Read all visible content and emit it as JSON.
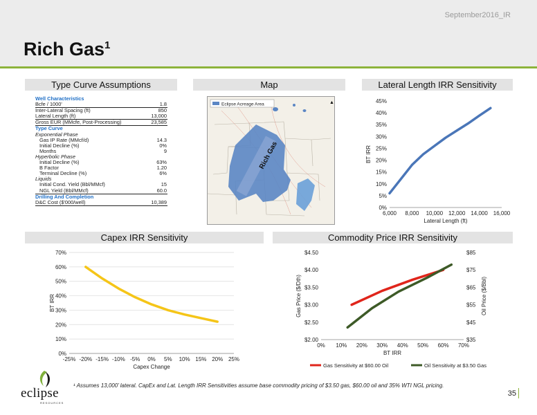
{
  "header": {
    "doc_id": "September2016_IR",
    "title": "Rich Gas",
    "title_sup": "1"
  },
  "sections": {
    "type_curve": "Type Curve Assumptions",
    "map": "Map",
    "lateral": "Lateral Length IRR Sensitivity",
    "capex": "Capex IRR Sensitivity",
    "commodity": "Commodity Price IRR Sensitivity"
  },
  "assumptions": [
    {
      "label": "Well Characteristics",
      "value": "",
      "style": "head"
    },
    {
      "label": "Bcfe / 1000'",
      "value": "1.8",
      "style": "ul"
    },
    {
      "label": "Inter-Lateral Spacing (ft)",
      "value": "850",
      "style": ""
    },
    {
      "label": "Lateral Length (ft)",
      "value": "13,000",
      "style": "ul"
    },
    {
      "label": "Gross EUR (MMcfe, Post-Processing)",
      "value": "23,585",
      "style": "ul"
    },
    {
      "label": "Type Curve",
      "value": "",
      "style": "head"
    },
    {
      "label": "Exponential Phase",
      "value": "",
      "style": "sub"
    },
    {
      "label": "Gas IP Rate (MMcf/d)",
      "value": "14.3",
      "style": "ind"
    },
    {
      "label": "Initial Decline (%)",
      "value": "0%",
      "style": "ind"
    },
    {
      "label": "Months",
      "value": "9",
      "style": "ind"
    },
    {
      "label": "Hyperbolic Phase",
      "value": "",
      "style": "sub"
    },
    {
      "label": "Initial Decline (%)",
      "value": "63%",
      "style": "ind"
    },
    {
      "label": "B Factor",
      "value": "1.20",
      "style": "ind"
    },
    {
      "label": "Terminal Decline (%)",
      "value": "6%",
      "style": "ind"
    },
    {
      "label": "Liquids",
      "value": "",
      "style": "sub"
    },
    {
      "label": "Initial Cond. Yield (Bbl/MMcf)",
      "value": "15",
      "style": "ind"
    },
    {
      "label": "NGL Yield (Bbl/MMcf)",
      "value": "60.0",
      "style": "ind ul"
    },
    {
      "label": "Drilling And Completion",
      "value": "",
      "style": "head"
    },
    {
      "label": "D&C Cost ($'000/well)",
      "value": "10,389",
      "style": "ul"
    }
  ],
  "map": {
    "legend": "Eclipse Acreage Area",
    "area_label": "Rich Gas",
    "acreage_color": "#5b86c4"
  },
  "chart_data": [
    {
      "type": "line",
      "name": "lateral",
      "title": "",
      "xlabel": "Lateral Length (ft)",
      "ylabel": "BT IRR",
      "xlim": [
        6000,
        16000
      ],
      "ylim": [
        0,
        45
      ],
      "xticks": [
        "6,000",
        "8,000",
        "10,000",
        "12,000",
        "14,000",
        "16,000"
      ],
      "yticks": [
        "0%",
        "5%",
        "10%",
        "15%",
        "20%",
        "25%",
        "30%",
        "35%",
        "40%",
        "45%"
      ],
      "color": "#4a76b8",
      "x": [
        6000,
        7000,
        8000,
        9000,
        10000,
        11000,
        12000,
        13000,
        14000,
        15000
      ],
      "y": [
        6,
        12,
        18,
        22.5,
        26,
        29.5,
        32.5,
        35.5,
        38.8,
        42
      ]
    },
    {
      "type": "line",
      "name": "capex",
      "title": "",
      "xlabel": "Capex Change",
      "ylabel": "BT IRR",
      "xlim": [
        -25,
        25
      ],
      "ylim": [
        0,
        70
      ],
      "xticks": [
        "-25%",
        "-20%",
        "-15%",
        "-10%",
        "-5%",
        "0%",
        "5%",
        "10%",
        "15%",
        "20%",
        "25%"
      ],
      "yticks": [
        "0%",
        "10%",
        "20%",
        "30%",
        "40%",
        "50%",
        "60%",
        "70%"
      ],
      "color": "#f5c518",
      "x": [
        -20,
        -15,
        -10,
        -5,
        0,
        5,
        10,
        15,
        20
      ],
      "y": [
        60,
        52,
        45,
        39,
        34,
        30,
        27,
        24.5,
        22
      ]
    },
    {
      "type": "line",
      "name": "commodity",
      "title": "",
      "xlabel": "BT IRR",
      "ylabel": "Gas Price ($/Dth)",
      "y2label": "Oil Price ($/Bbl)",
      "xlim": [
        0,
        70
      ],
      "ylim": [
        2.0,
        4.5
      ],
      "y2lim": [
        35,
        85
      ],
      "xticks": [
        "0%",
        "10%",
        "20%",
        "30%",
        "40%",
        "50%",
        "60%",
        "70%"
      ],
      "yticks": [
        "$2.00",
        "$2.50",
        "$3.00",
        "$3.50",
        "$4.00",
        "$4.50"
      ],
      "y2ticks": [
        "$35",
        "$45",
        "$55",
        "$65",
        "$75",
        "$85"
      ],
      "series": [
        {
          "name": "Gas Sensitivity at $60.00 Oil",
          "color": "#e0251b",
          "axis": "left",
          "x": [
            15,
            30,
            45,
            60
          ],
          "y": [
            3.0,
            3.4,
            3.72,
            4.0
          ]
        },
        {
          "name": "Oil Sensitivity at $3.50 Gas",
          "color": "#3d5a27",
          "axis": "right",
          "x": [
            13,
            25,
            38,
            52,
            64
          ],
          "y": [
            42,
            53,
            62.5,
            70.5,
            78
          ]
        }
      ]
    }
  ],
  "footnote": "¹ Assumes 13,000’ lateral. CapEx and Lat. Length IRR Sensitivities assume base commodity pricing of $3.50 gas, $60.00 oil and 35% WTI NGL pricing.",
  "logo": {
    "word": "eclipse",
    "sub": "RESOURCES"
  },
  "page_number": "35"
}
